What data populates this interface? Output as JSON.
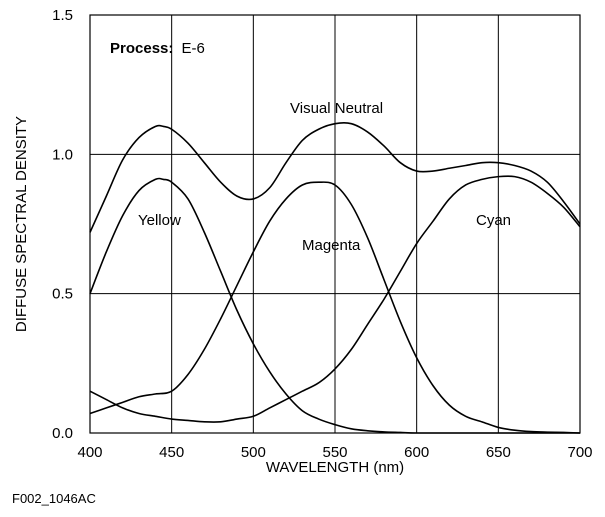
{
  "chart_data": {
    "type": "line",
    "title": "",
    "annotation": {
      "label": "Process:",
      "value": "E-6"
    },
    "figure_id": "F002_1046AC",
    "xlabel": "WAVELENGTH (nm)",
    "ylabel": "DIFFUSE SPECTRAL DENSITY",
    "xlim": [
      400,
      700
    ],
    "ylim": [
      0.0,
      1.5
    ],
    "x_ticks": [
      "400",
      "450",
      "500",
      "550",
      "600",
      "650",
      "700"
    ],
    "y_ticks": [
      "0.0",
      "0.5",
      "1.0",
      "1.5"
    ],
    "grid": true,
    "series": [
      {
        "name": "Visual Neutral",
        "x": [
          400,
          410,
          420,
          430,
          440,
          445,
          450,
          460,
          470,
          480,
          490,
          500,
          510,
          520,
          530,
          540,
          550,
          560,
          570,
          580,
          590,
          600,
          610,
          620,
          630,
          640,
          650,
          660,
          670,
          680,
          690,
          700
        ],
        "y": [
          0.72,
          0.85,
          0.98,
          1.06,
          1.1,
          1.1,
          1.09,
          1.04,
          0.97,
          0.9,
          0.85,
          0.84,
          0.88,
          0.97,
          1.05,
          1.09,
          1.11,
          1.11,
          1.08,
          1.03,
          0.97,
          0.94,
          0.94,
          0.95,
          0.96,
          0.97,
          0.97,
          0.96,
          0.94,
          0.9,
          0.83,
          0.75
        ]
      },
      {
        "name": "Yellow",
        "x": [
          400,
          410,
          420,
          430,
          440,
          445,
          450,
          460,
          470,
          480,
          490,
          500,
          510,
          520,
          530,
          540,
          550,
          560,
          570,
          580,
          590,
          600,
          620,
          650,
          700
        ],
        "y": [
          0.5,
          0.65,
          0.78,
          0.87,
          0.91,
          0.91,
          0.9,
          0.84,
          0.72,
          0.58,
          0.44,
          0.32,
          0.22,
          0.14,
          0.08,
          0.05,
          0.03,
          0.015,
          0.008,
          0.004,
          0.002,
          0.0,
          0.0,
          0.0,
          0.0
        ]
      },
      {
        "name": "Magenta",
        "x": [
          400,
          410,
          420,
          430,
          440,
          450,
          460,
          470,
          480,
          490,
          500,
          510,
          520,
          530,
          540,
          550,
          560,
          570,
          580,
          590,
          600,
          610,
          620,
          630,
          640,
          650,
          660,
          670,
          680,
          690,
          700
        ],
        "y": [
          0.15,
          0.12,
          0.09,
          0.07,
          0.06,
          0.05,
          0.045,
          0.04,
          0.04,
          0.05,
          0.06,
          0.09,
          0.12,
          0.15,
          0.18,
          0.23,
          0.3,
          0.39,
          0.48,
          0.58,
          0.68,
          0.76,
          0.84,
          0.89,
          0.91,
          0.92,
          0.92,
          0.9,
          0.86,
          0.81,
          0.74
        ]
      },
      {
        "name": "Cyan",
        "x": [
          400,
          410,
          420,
          430,
          440,
          450,
          460,
          470,
          480,
          490,
          500,
          510,
          520,
          530,
          540,
          550,
          560,
          570,
          580,
          590,
          600,
          610,
          620,
          630,
          640,
          650,
          660,
          670,
          680,
          690,
          700
        ],
        "y": [
          0.07,
          0.09,
          0.11,
          0.13,
          0.14,
          0.15,
          0.21,
          0.3,
          0.41,
          0.53,
          0.65,
          0.76,
          0.84,
          0.89,
          0.9,
          0.89,
          0.82,
          0.7,
          0.55,
          0.4,
          0.27,
          0.17,
          0.1,
          0.06,
          0.04,
          0.02,
          0.01,
          0.005,
          0.003,
          0.002,
          0.0
        ]
      }
    ]
  }
}
